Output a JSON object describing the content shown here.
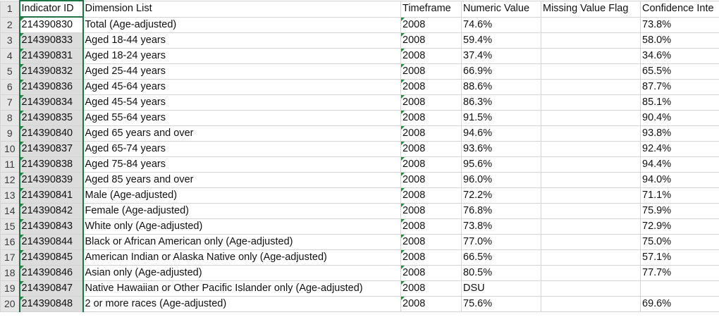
{
  "columns": [
    "Indicator ID",
    "Dimension List",
    "Timeframe",
    "Numeric Value",
    "Missing Value Flag",
    "Confidence Inte"
  ],
  "rows": [
    {
      "n": "2",
      "id": "214390830",
      "dim": "Total (Age-adjusted)",
      "tf": "2008",
      "val": "74.6%",
      "flag": "",
      "ci": "73.8%"
    },
    {
      "n": "3",
      "id": "214390833",
      "dim": "Aged 18-44 years",
      "tf": "2008",
      "val": "59.4%",
      "flag": "",
      "ci": "58.0%"
    },
    {
      "n": "4",
      "id": "214390831",
      "dim": "Aged 18-24 years",
      "tf": "2008",
      "val": "37.4%",
      "flag": "",
      "ci": "34.6%"
    },
    {
      "n": "5",
      "id": "214390832",
      "dim": "Aged 25-44 years",
      "tf": "2008",
      "val": "66.9%",
      "flag": "",
      "ci": "65.5%"
    },
    {
      "n": "6",
      "id": "214390836",
      "dim": "Aged 45-64 years",
      "tf": "2008",
      "val": "88.6%",
      "flag": "",
      "ci": "87.7%"
    },
    {
      "n": "7",
      "id": "214390834",
      "dim": "Aged 45-54 years",
      "tf": "2008",
      "val": "86.3%",
      "flag": "",
      "ci": "85.1%"
    },
    {
      "n": "8",
      "id": "214390835",
      "dim": "Aged 55-64 years",
      "tf": "2008",
      "val": "91.5%",
      "flag": "",
      "ci": "90.4%"
    },
    {
      "n": "9",
      "id": "214390840",
      "dim": "Aged 65 years and over",
      "tf": "2008",
      "val": "94.6%",
      "flag": "",
      "ci": "93.8%"
    },
    {
      "n": "10",
      "id": "214390837",
      "dim": "Aged 65-74 years",
      "tf": "2008",
      "val": "93.6%",
      "flag": "",
      "ci": "92.4%"
    },
    {
      "n": "11",
      "id": "214390838",
      "dim": "Aged 75-84 years",
      "tf": "2008",
      "val": "95.6%",
      "flag": "",
      "ci": "94.4%"
    },
    {
      "n": "12",
      "id": "214390839",
      "dim": "Aged 85 years and over",
      "tf": "2008",
      "val": "96.0%",
      "flag": "",
      "ci": "94.0%"
    },
    {
      "n": "13",
      "id": "214390841",
      "dim": "Male (Age-adjusted)",
      "tf": "2008",
      "val": "72.2%",
      "flag": "",
      "ci": "71.1%"
    },
    {
      "n": "14",
      "id": "214390842",
      "dim": "Female (Age-adjusted)",
      "tf": "2008",
      "val": "76.8%",
      "flag": "",
      "ci": "75.9%"
    },
    {
      "n": "15",
      "id": "214390843",
      "dim": "White only (Age-adjusted)",
      "tf": "2008",
      "val": "73.8%",
      "flag": "",
      "ci": "72.9%"
    },
    {
      "n": "16",
      "id": "214390844",
      "dim": "Black or African American only (Age-adjusted)",
      "tf": "2008",
      "val": "77.0%",
      "flag": "",
      "ci": "75.0%"
    },
    {
      "n": "17",
      "id": "214390845",
      "dim": "American Indian or Alaska Native only (Age-adjusted)",
      "tf": "2008",
      "val": "66.5%",
      "flag": "",
      "ci": "57.1%"
    },
    {
      "n": "18",
      "id": "214390846",
      "dim": "Asian only (Age-adjusted)",
      "tf": "2008",
      "val": "80.5%",
      "flag": "",
      "ci": "77.7%"
    },
    {
      "n": "19",
      "id": "214390847",
      "dim": "Native Hawaiian or Other Pacific Islander only (Age-adjusted)",
      "tf": "2008",
      "val": "DSU",
      "flag": "",
      "ci": ""
    },
    {
      "n": "20",
      "id": "214390848",
      "dim": "2 or more races (Age-adjusted)",
      "tf": "2008",
      "val": "75.6%",
      "flag": "",
      "ci": "69.6%"
    }
  ],
  "colors": {
    "selection_border": "#217346",
    "selected_fill": "#dcdcdc",
    "error_triangle": "#1e8a3c",
    "gridline": "#d4d4d4"
  }
}
